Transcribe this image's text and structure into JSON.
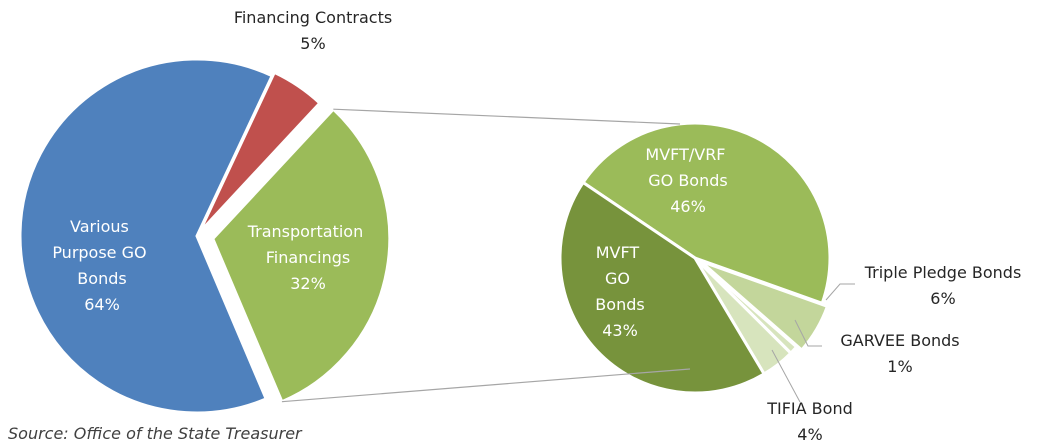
{
  "chart_data": [
    {
      "type": "pie",
      "categories": [
        "Various Purpose GO Bonds",
        "Financing Contracts",
        "Transportation Financings"
      ],
      "values": [
        64,
        5,
        32
      ],
      "value_labels": [
        "64%",
        "5%",
        "32%"
      ],
      "colors": [
        "#4f81bd",
        "#c0504d",
        "#9bbb59"
      ],
      "source": "Source: Office of the State Treasurer"
    },
    {
      "type": "pie",
      "categories": [
        "MVFT/VRF GO Bonds",
        "Triple Pledge Bonds",
        "GARVEE Bonds",
        "TIFIA Bond",
        "MVFT GO Bonds"
      ],
      "values": [
        46,
        6,
        1,
        4,
        43
      ],
      "value_labels": [
        "46%",
        "6%",
        "1%",
        "4%",
        "43%"
      ],
      "colors": [
        "#9bbb59",
        "#c3d69b",
        "#d7e4bd",
        "#d7e4bd",
        "#77933c"
      ]
    }
  ]
}
